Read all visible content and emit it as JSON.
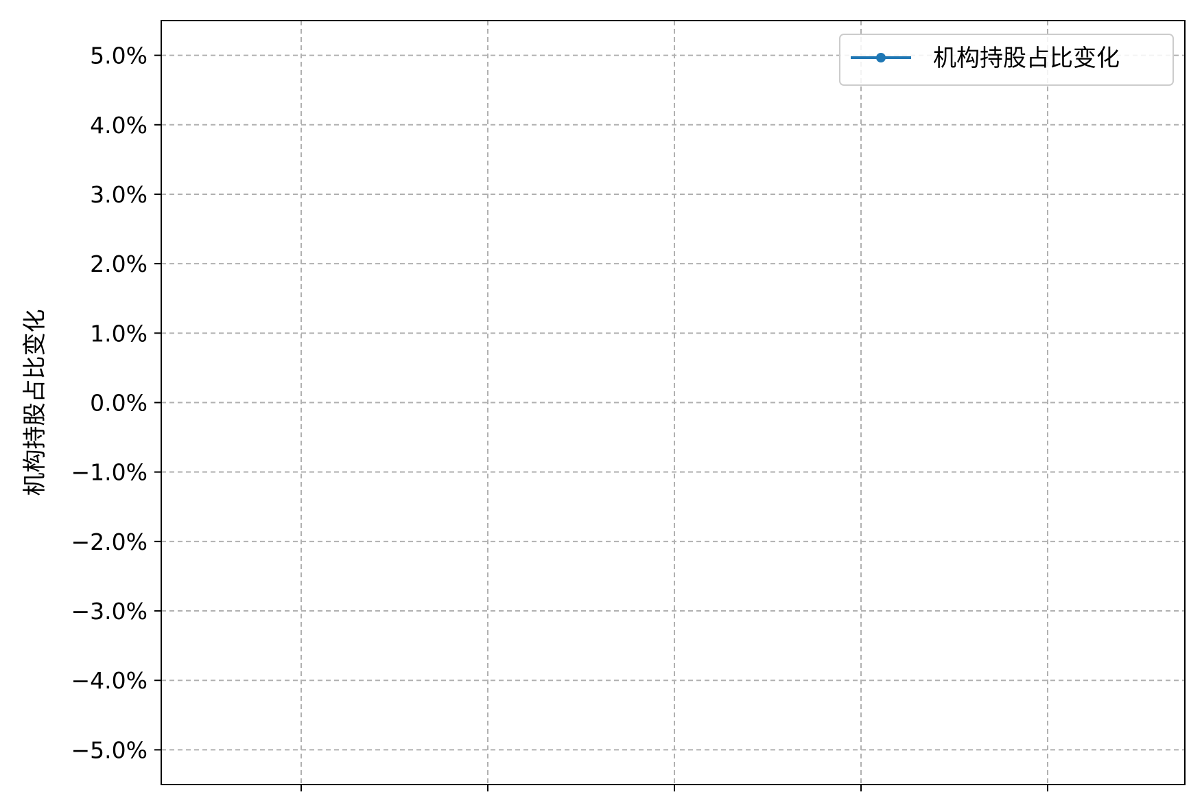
{
  "chart_data": {
    "type": "line",
    "title": "",
    "xlabel": "",
    "ylabel": "机构持股占比变化",
    "y_format": "percent",
    "ylim": [
      -0.055,
      0.055
    ],
    "y_ticks": [
      -0.05,
      -0.04,
      -0.03,
      -0.02,
      -0.01,
      0.0,
      0.01,
      0.02,
      0.03,
      0.04,
      0.05
    ],
    "y_tick_labels": [
      "−5.0%",
      "−4.0%",
      "−3.0%",
      "−2.0%",
      "−1.0%",
      "0.0%",
      "1.0%",
      "2.0%",
      "3.0%",
      "4.0%",
      "5.0%"
    ],
    "x_ticks": 5,
    "x_tick_labels": [
      "",
      "",
      "",
      "",
      ""
    ],
    "grid": true,
    "grid_style": "dashed",
    "legend_position": "top-right",
    "series": [
      {
        "name": "机构持股占比变化",
        "color": "#1f77b4",
        "marker": "circle",
        "x": [],
        "y": []
      }
    ]
  }
}
